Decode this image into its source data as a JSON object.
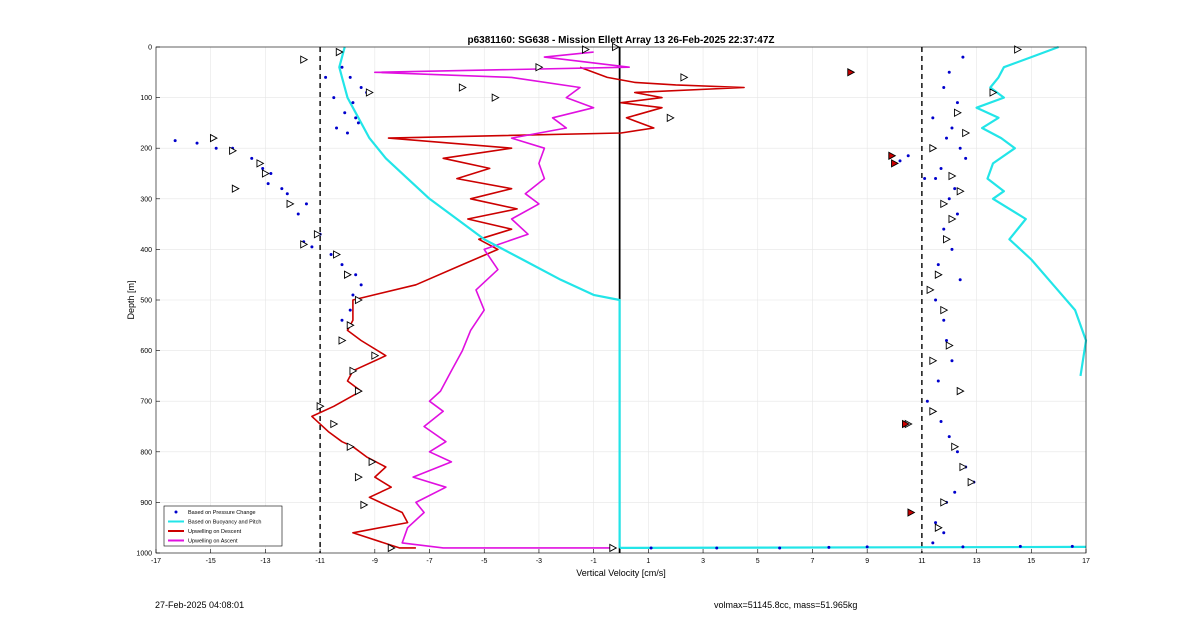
{
  "footer": {
    "timestamp": "27-Feb-2025 04:08:01",
    "volmax": "volmax=51145.8cc, mass=51.965kg"
  },
  "chart_data": {
    "type": "line",
    "title": "p6381160: SG638 - Mission Ellett Array 13 26-Feb-2025 22:37:47Z",
    "xlabel": "Vertical Velocity [cm/s]",
    "ylabel": "Depth [m]",
    "xlim": [
      -17,
      17
    ],
    "ylim": [
      1000,
      0
    ],
    "y_reversed": true,
    "xticks": [
      -17,
      -15,
      -13,
      -11,
      -9,
      -7,
      -5,
      -3,
      -1,
      1,
      3,
      5,
      7,
      9,
      11,
      13,
      15,
      17
    ],
    "yticks": [
      0,
      100,
      200,
      300,
      400,
      500,
      600,
      700,
      800,
      900,
      1000
    ],
    "grid": true,
    "legend_position": "bottom-left",
    "reference_lines": {
      "dashed_x": [
        -11,
        11
      ],
      "solid_x": -0.05,
      "color": "#000000"
    },
    "series": [
      {
        "name": "Based on Pressure Change",
        "color": "#0000cc",
        "style": "dots",
        "descent": {
          "x": [
            -10.2,
            -10.8,
            -9.5,
            -10.5,
            -9.8,
            -10.1,
            -9.6,
            -10.4,
            -10.0,
            -9.7,
            -9.3,
            -9.9,
            -16.3,
            -15.5,
            -14.2,
            -13.5,
            -13.1,
            -12.8,
            -12.9,
            -12.4,
            -12.2,
            -14.8,
            -14.1,
            -11.5,
            -11.8,
            -11.0,
            -11.6,
            -11.3,
            -10.6,
            -10.2,
            -9.7,
            -9.5,
            -9.8,
            -9.6,
            -9.9,
            -10.2
          ],
          "y": [
            40,
            60,
            80,
            100,
            110,
            130,
            150,
            160,
            170,
            140,
            90,
            60,
            185,
            190,
            200,
            220,
            240,
            250,
            270,
            280,
            290,
            200,
            280,
            310,
            330,
            370,
            385,
            395,
            410,
            430,
            450,
            470,
            490,
            500,
            520,
            540
          ]
        },
        "ascent": {
          "x": [
            12.5,
            12.0,
            11.8,
            12.3,
            11.4,
            12.1,
            11.9,
            12.4,
            12.6,
            11.7,
            11.5,
            12.2,
            10.5,
            10.2,
            11.1,
            12.0,
            12.3,
            11.8,
            12.1,
            11.6,
            12.4,
            11.5,
            11.8,
            11.9,
            12.1,
            11.6,
            11.2,
            11.7,
            12.0,
            12.3,
            12.6,
            12.9,
            12.2,
            11.9,
            11.5,
            11.8,
            11.4
          ],
          "y": [
            20,
            50,
            80,
            110,
            140,
            160,
            180,
            200,
            220,
            240,
            260,
            280,
            215,
            225,
            260,
            300,
            330,
            360,
            400,
            430,
            460,
            500,
            540,
            580,
            620,
            660,
            700,
            740,
            770,
            800,
            830,
            860,
            880,
            900,
            940,
            960,
            980
          ]
        },
        "bottom_x": [
          1.1,
          3.5,
          5.8,
          7.6,
          9.0,
          12.5,
          14.6,
          16.5
        ],
        "bottom_y": [
          990,
          990,
          990,
          989,
          988,
          988,
          987,
          987
        ]
      },
      {
        "name": "Based on Buoyancy and Pitch",
        "color": "#22e5e8",
        "style": "line",
        "descent": {
          "x": [
            -10.1,
            -10.3,
            -10.2,
            -10.0,
            -9.6,
            -9.2,
            -8.6,
            -7.8,
            -7.0,
            -6.0,
            -5.0,
            -3.6,
            -2.2,
            -1.0,
            -0.05,
            -0.05,
            -0.05
          ],
          "y": [
            0,
            40,
            60,
            100,
            140,
            180,
            220,
            260,
            300,
            340,
            380,
            420,
            460,
            490,
            500,
            700,
            990
          ]
        },
        "ascent": {
          "x": [
            16.0,
            15.0,
            14.0,
            13.8,
            13.5,
            14.0,
            13.0,
            13.8,
            13.2,
            13.9,
            14.4,
            13.6,
            13.4,
            14.0,
            13.6,
            14.8,
            14.2,
            15.0,
            15.8,
            16.6,
            17.0,
            16.8
          ],
          "y": [
            0,
            20,
            40,
            60,
            80,
            100,
            120,
            140,
            160,
            180,
            200,
            230,
            260,
            285,
            300,
            340,
            380,
            420,
            470,
            520,
            580,
            650
          ]
        },
        "bottom_x": [
          -0.05,
          17.0
        ],
        "bottom_y": [
          990,
          988
        ]
      },
      {
        "name": "Upwelling on Descent",
        "color": "#cc0000",
        "style": "line",
        "x": [
          -1.5,
          -0.5,
          0.5,
          2.0,
          4.5,
          0.5,
          1.5,
          0.0,
          1.5,
          0.2,
          1.2,
          0.0,
          -8.5,
          -4.0,
          -6.5,
          -4.8,
          -6.0,
          -4.0,
          -5.5,
          -3.8,
          -5.6,
          -4.0,
          -5.2,
          -4.5,
          -5.8,
          -7.5,
          -9.8,
          -9.8,
          -10.0,
          -9.5,
          -8.6,
          -9.8,
          -10.0,
          -9.5,
          -10.5,
          -11.3,
          -10.7,
          -10.2,
          -9.8,
          -9.3,
          -8.6,
          -9.0,
          -8.4,
          -9.2,
          -8.8,
          -8.0,
          -7.8,
          -9.8,
          -8.1,
          -7.5
        ],
        "y": [
          40,
          60,
          70,
          75,
          80,
          90,
          100,
          110,
          120,
          140,
          160,
          170,
          180,
          200,
          220,
          240,
          260,
          280,
          300,
          320,
          340,
          360,
          380,
          400,
          430,
          470,
          500,
          540,
          560,
          580,
          610,
          640,
          660,
          680,
          710,
          730,
          760,
          780,
          790,
          810,
          830,
          850,
          870,
          890,
          900,
          920,
          940,
          960,
          990,
          990
        ]
      },
      {
        "name": "Upwelling on Ascent",
        "color": "#e010e0",
        "style": "line",
        "x": [
          -1.0,
          -2.8,
          0.3,
          -9.0,
          -4.0,
          -1.5,
          -2.0,
          -1.0,
          -2.5,
          -2.0,
          -4.0,
          -2.8,
          -3.0,
          -2.8,
          -3.5,
          -3.0,
          -4.0,
          -3.4,
          -5.0,
          -4.5,
          -5.3,
          -5.0,
          -5.5,
          -5.8,
          -6.2,
          -6.6,
          -7.0,
          -6.5,
          -7.2,
          -6.4,
          -7.0,
          -6.2,
          -7.6,
          -6.4,
          -7.5,
          -7.2,
          -7.8,
          -8.0,
          -6.5,
          -0.4
        ],
        "y": [
          10,
          20,
          40,
          50,
          60,
          80,
          100,
          120,
          140,
          160,
          180,
          200,
          230,
          260,
          290,
          310,
          340,
          370,
          400,
          440,
          480,
          520,
          560,
          600,
          640,
          680,
          700,
          720,
          750,
          780,
          800,
          820,
          850,
          870,
          900,
          920,
          950,
          980,
          990,
          990
        ]
      }
    ],
    "markers": {
      "style": "triangle",
      "descent_x": [
        -10.3,
        -11.6,
        -9.2,
        -14.9,
        -14.2,
        -13.2,
        -13.0,
        -14.1,
        -12.1,
        -11.1,
        -11.6,
        -10.4,
        -10.0,
        -9.6,
        -9.9,
        -10.2,
        -9.0,
        -9.8,
        -9.6,
        -11.0,
        -10.5,
        -9.9,
        -9.1,
        -9.6,
        -9.4,
        -8.4
      ],
      "descent_y": [
        10,
        25,
        90,
        180,
        205,
        230,
        250,
        280,
        310,
        370,
        390,
        410,
        450,
        500,
        550,
        580,
        610,
        640,
        680,
        710,
        745,
        790,
        820,
        850,
        905,
        990
      ],
      "ascent_x": [
        14.5,
        13.6,
        12.3,
        12.6,
        11.4,
        12.1,
        12.4,
        11.8,
        12.1,
        11.9,
        11.6,
        11.3,
        11.8,
        12.0,
        11.4,
        12.4,
        11.4,
        10.5,
        12.2,
        12.5,
        12.8,
        11.8,
        11.6
      ],
      "ascent_y": [
        5,
        90,
        130,
        170,
        200,
        255,
        285,
        310,
        340,
        380,
        450,
        480,
        520,
        590,
        620,
        680,
        720,
        745,
        790,
        830,
        860,
        900,
        950
      ],
      "ascent_color_x": [
        8.4,
        9.9,
        10.0,
        10.4,
        10.6
      ],
      "ascent_color_y": [
        50,
        215,
        230,
        745,
        920
      ],
      "descent_ascent_x": [
        -5.8,
        -4.6,
        -3.0,
        -1.3,
        -0.2,
        1.8,
        2.3,
        -0.3
      ],
      "descent_ascent_y": [
        80,
        100,
        40,
        5,
        0,
        140,
        60,
        990
      ]
    }
  }
}
